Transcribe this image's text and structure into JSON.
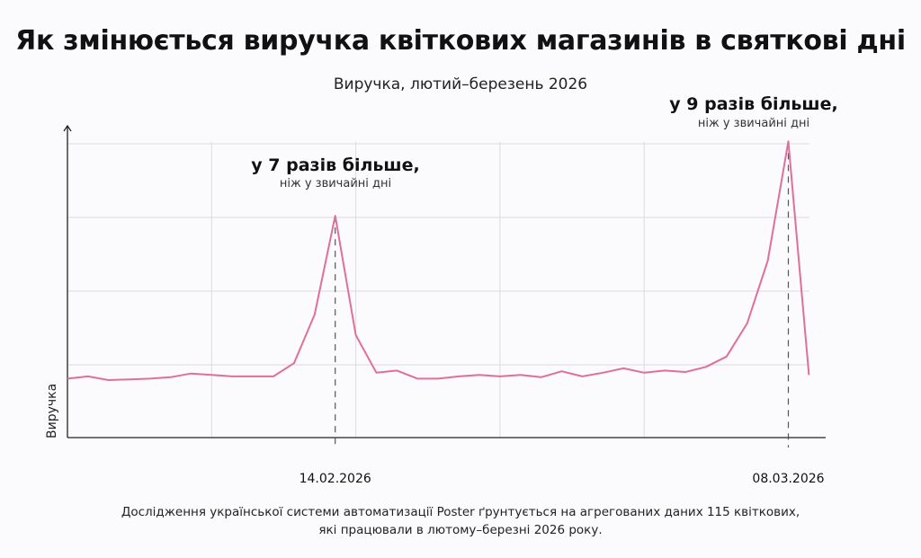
{
  "header": {
    "title": "Як змінюється виручка квіткових магазинів в святкові дні",
    "subtitle": "Виручка, лютий–березень 2026"
  },
  "chart_data": {
    "type": "line",
    "title": "Як змінюється виручка квіткових магазинів в святкові дні",
    "subtitle": "Виручка, лютий–березень 2026",
    "ylabel": "Виручка",
    "xlabel": "",
    "x_start": "01.02.2026",
    "x_end": "09.03.2026",
    "x_tick_labels": [
      "14.02.2026",
      "08.03.2026"
    ],
    "ylim": [
      0,
      4.2
    ],
    "y_ticks_shown": false,
    "grid": true,
    "line_color": "#df6f9b",
    "series": [
      {
        "values": [
          0.8,
          0.83,
          0.78,
          0.79,
          0.8,
          0.82,
          0.87,
          0.85,
          0.83,
          0.83,
          0.83,
          1.01,
          1.67,
          3.01,
          1.39,
          0.88,
          0.91,
          0.8,
          0.8,
          0.83,
          0.85,
          0.83,
          0.85,
          0.82,
          0.9,
          0.83,
          0.88,
          0.94,
          0.88,
          0.91,
          0.89,
          0.96,
          1.1,
          1.55,
          2.4,
          4.02,
          0.85
        ]
      }
    ],
    "annotations": [
      {
        "date": "14.02.2026",
        "index": 13,
        "headline": "у 7 разів більше,",
        "note": "ніж у звичайні дні"
      },
      {
        "date": "08.03.2026",
        "index": 35,
        "headline": "у 9 разів більше,",
        "note": "ніж у звичайні дні"
      }
    ]
  },
  "footer": {
    "line1": "Дослідження української системи автоматизації Poster ґрунтується на агрегованих даних 115 квіткових,",
    "line2": "які працювали в лютому–березні 2026 року."
  }
}
